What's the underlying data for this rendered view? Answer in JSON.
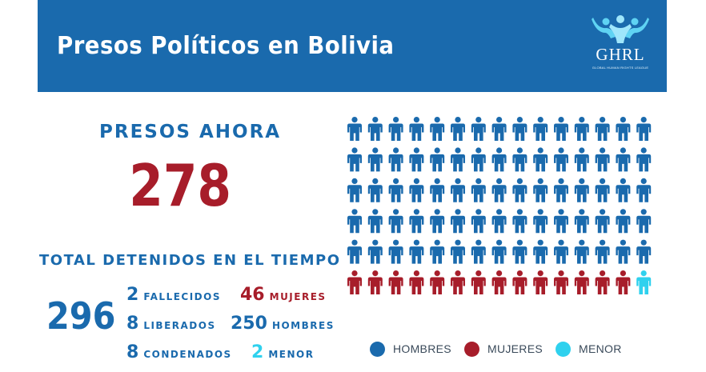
{
  "header": {
    "title": "Presos Políticos en Bolivia",
    "logo_text": "GHRL",
    "logo_subtext": "GLOBAL HUMAN RIGHTS LEAGUE"
  },
  "presos": {
    "label": "PRESOS AHORA",
    "value": "278"
  },
  "total": {
    "label": "TOTAL DETENIDOS EN EL TIEMPO",
    "value": "296",
    "fallecidos": {
      "num": "2",
      "label": "FALLECIDOS"
    },
    "liberados": {
      "num": "8",
      "label": "LIBERADOS"
    },
    "condenados": {
      "num": "8",
      "label": "CONDENADOS"
    },
    "mujeres": {
      "num": "46",
      "label": "MUJERES"
    },
    "hombres": {
      "num": "250",
      "label": "HOMBRES"
    },
    "menor": {
      "num": "2",
      "label": "MENOR"
    }
  },
  "colors": {
    "blue": "#1a6aad",
    "red": "#a71d2a",
    "cyan": "#2fd1ee"
  },
  "chart_data": {
    "type": "pictogram",
    "rows": 6,
    "columns": 15,
    "cells": [
      [
        "hombres",
        "hombres",
        "hombres",
        "hombres",
        "hombres",
        "hombres",
        "hombres",
        "hombres",
        "hombres",
        "hombres",
        "hombres",
        "hombres",
        "hombres",
        "hombres",
        "hombres"
      ],
      [
        "hombres",
        "hombres",
        "hombres",
        "hombres",
        "hombres",
        "hombres",
        "hombres",
        "hombres",
        "hombres",
        "hombres",
        "hombres",
        "hombres",
        "hombres",
        "hombres",
        "hombres"
      ],
      [
        "hombres",
        "hombres",
        "hombres",
        "hombres",
        "hombres",
        "hombres",
        "hombres",
        "hombres",
        "hombres",
        "hombres",
        "hombres",
        "hombres",
        "hombres",
        "hombres",
        "hombres"
      ],
      [
        "hombres",
        "hombres",
        "hombres",
        "hombres",
        "hombres",
        "hombres",
        "hombres",
        "hombres",
        "hombres",
        "hombres",
        "hombres",
        "hombres",
        "hombres",
        "hombres",
        "hombres"
      ],
      [
        "hombres",
        "hombres",
        "hombres",
        "hombres",
        "hombres",
        "hombres",
        "hombres",
        "hombres",
        "hombres",
        "hombres",
        "hombres",
        "hombres",
        "hombres",
        "hombres",
        "hombres"
      ],
      [
        "mujeres",
        "mujeres",
        "mujeres",
        "mujeres",
        "mujeres",
        "mujeres",
        "mujeres",
        "mujeres",
        "mujeres",
        "mujeres",
        "mujeres",
        "mujeres",
        "mujeres",
        "mujeres",
        "menor"
      ]
    ],
    "legend": [
      {
        "key": "hombres",
        "label": "HOMBRES",
        "color": "#1a6aad"
      },
      {
        "key": "mujeres",
        "label": "MUJERES",
        "color": "#a71d2a"
      },
      {
        "key": "menor",
        "label": "MENOR",
        "color": "#2fd1ee"
      }
    ],
    "legend_placement": "bottom"
  }
}
